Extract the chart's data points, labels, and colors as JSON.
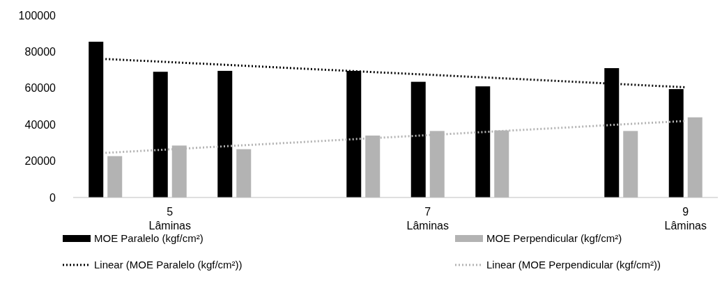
{
  "chart_data": {
    "type": "bar",
    "categories": [
      null,
      "5\nLâminas",
      null,
      null,
      null,
      "7\nLâminas",
      null,
      null,
      null,
      "9\nLâminas"
    ],
    "ylim": [
      0,
      100000
    ],
    "yticks": [
      0,
      20000,
      40000,
      60000,
      80000,
      100000
    ],
    "grid": false,
    "legend": "bottom",
    "series": [
      {
        "name": "MOE Paralelo (kgf/cm²)",
        "color": "#000000",
        "values": [
          85500,
          69000,
          69500,
          null,
          69500,
          63500,
          61000,
          null,
          71000,
          59500
        ]
      },
      {
        "name": "MOE Perpendicular (kgf/cm²)",
        "color": "#b3b3b3",
        "values": [
          22700,
          28500,
          26500,
          null,
          34000,
          36500,
          36800,
          null,
          36500,
          44000
        ]
      },
      {
        "name": "Linear (MOE Paralelo (kgf/cm²))",
        "type": "line",
        "line_style": "dotted",
        "color": "#000000",
        "values": [
          76000,
          74300,
          72600,
          70800,
          69100,
          67400,
          65700,
          64000,
          62200,
          60500
        ]
      },
      {
        "name": "Linear (MOE Perpendicular (kgf/cm²))",
        "type": "line",
        "line_style": "dotted",
        "color": "#b3b3b3",
        "values": [
          24500,
          26400,
          28400,
          30300,
          32300,
          34200,
          36200,
          38100,
          40100,
          42000
        ]
      }
    ]
  }
}
